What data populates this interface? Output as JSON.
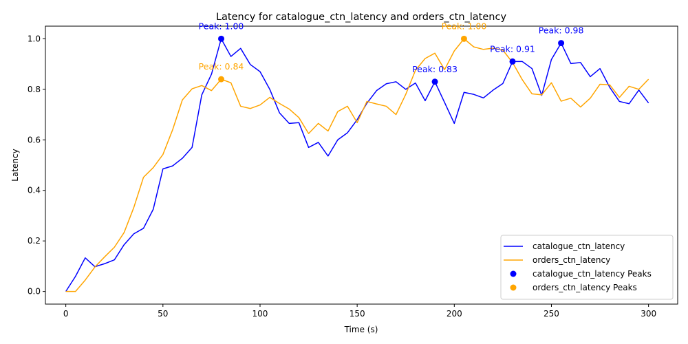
{
  "chart_data": {
    "type": "line",
    "title": "Latency for catalogue_ctn_latency and orders_ctn_latency",
    "xlabel": "Time (s)",
    "ylabel": "Latency",
    "xlim": [
      -10.5,
      315
    ],
    "ylim": [
      -0.05,
      1.05
    ],
    "xticks": [
      0,
      50,
      100,
      150,
      200,
      250,
      300
    ],
    "yticks": [
      0.0,
      0.2,
      0.4,
      0.6,
      0.8,
      1.0
    ],
    "xtick_labels": [
      "0",
      "50",
      "100",
      "150",
      "200",
      "250",
      "300"
    ],
    "ytick_labels": [
      "0.0",
      "0.2",
      "0.4",
      "0.6",
      "0.8",
      "1.0"
    ],
    "grid": false,
    "legend_position": "lower-right",
    "x": [
      0,
      5,
      10,
      15,
      20,
      25,
      30,
      35,
      40,
      45,
      50,
      55,
      60,
      65,
      70,
      75,
      80,
      85,
      90,
      95,
      100,
      105,
      110,
      115,
      120,
      125,
      130,
      135,
      140,
      145,
      150,
      155,
      160,
      165,
      170,
      175,
      180,
      185,
      190,
      195,
      200,
      205,
      210,
      215,
      220,
      225,
      230,
      235,
      240,
      245,
      250,
      255,
      260,
      265,
      270,
      275,
      280,
      285,
      290,
      295,
      300
    ],
    "series": [
      {
        "name": "catalogue_ctn_latency",
        "color": "#0000ff",
        "values": [
          0.0,
          0.06,
          0.133,
          0.098,
          0.11,
          0.125,
          0.185,
          0.228,
          0.25,
          0.325,
          0.485,
          0.497,
          0.527,
          0.57,
          0.778,
          0.86,
          1.0,
          0.93,
          0.962,
          0.898,
          0.87,
          0.8,
          0.707,
          0.665,
          0.668,
          0.57,
          0.59,
          0.536,
          0.6,
          0.628,
          0.68,
          0.745,
          0.795,
          0.822,
          0.83,
          0.8,
          0.825,
          0.755,
          0.83,
          0.748,
          0.665,
          0.788,
          0.78,
          0.766,
          0.797,
          0.823,
          0.91,
          0.91,
          0.882,
          0.776,
          0.918,
          0.983,
          0.902,
          0.906,
          0.85,
          0.882,
          0.808,
          0.752,
          0.743,
          0.797,
          0.746
        ]
      },
      {
        "name": "orders_ctn_latency",
        "color": "#ffa500",
        "values": [
          0.0,
          0.0,
          0.045,
          0.097,
          0.137,
          0.175,
          0.233,
          0.332,
          0.452,
          0.49,
          0.542,
          0.64,
          0.758,
          0.802,
          0.815,
          0.795,
          0.84,
          0.826,
          0.733,
          0.724,
          0.738,
          0.768,
          0.744,
          0.722,
          0.688,
          0.625,
          0.665,
          0.635,
          0.712,
          0.733,
          0.668,
          0.752,
          0.742,
          0.733,
          0.7,
          0.78,
          0.875,
          0.922,
          0.943,
          0.878,
          0.952,
          1.0,
          0.968,
          0.958,
          0.963,
          0.955,
          0.906,
          0.838,
          0.782,
          0.778,
          0.826,
          0.753,
          0.765,
          0.73,
          0.765,
          0.82,
          0.818,
          0.768,
          0.812,
          0.8,
          0.84
        ]
      }
    ],
    "peaks": [
      {
        "series": "catalogue_ctn_latency",
        "x": 80,
        "y": 1.0,
        "label": "Peak: 1.00",
        "color": "#0000ff"
      },
      {
        "series": "catalogue_ctn_latency",
        "x": 190,
        "y": 0.83,
        "label": "Peak: 0.83",
        "color": "#0000ff"
      },
      {
        "series": "catalogue_ctn_latency",
        "x": 230,
        "y": 0.91,
        "label": "Peak: 0.91",
        "color": "#0000ff"
      },
      {
        "series": "catalogue_ctn_latency",
        "x": 255,
        "y": 0.983,
        "label": "Peak: 0.98",
        "color": "#0000ff"
      },
      {
        "series": "orders_ctn_latency",
        "x": 80,
        "y": 0.84,
        "label": "Peak: 0.84",
        "color": "#ffa500"
      },
      {
        "series": "orders_ctn_latency",
        "x": 205,
        "y": 1.0,
        "label": "Peak: 1.00",
        "color": "#ffa500"
      }
    ],
    "legend": [
      {
        "label": "catalogue_ctn_latency",
        "kind": "line",
        "color": "#0000ff"
      },
      {
        "label": "orders_ctn_latency",
        "kind": "line",
        "color": "#ffa500"
      },
      {
        "label": "catalogue_ctn_latency Peaks",
        "kind": "marker",
        "color": "#0000ff"
      },
      {
        "label": "orders_ctn_latency Peaks",
        "kind": "marker",
        "color": "#ffa500"
      }
    ]
  }
}
